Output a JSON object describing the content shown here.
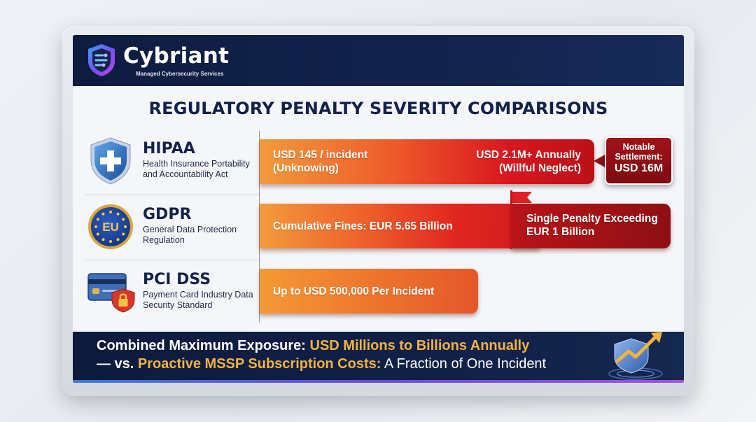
{
  "header": {
    "brand": "Cybriant",
    "tagline": "Managed Cybersecurity Services"
  },
  "title": "REGULATORY PENALTY SEVERITY COMPARISONS",
  "regulations": [
    {
      "name": "HIPAA",
      "description": "Health Insurance Portability and Accountability Act",
      "icon": "medical-shield-icon",
      "bar_min_line1": "USD 145 / incident",
      "bar_min_line2": "(Unknowing)",
      "bar_max_line1": "USD 2.1M+ Annually",
      "bar_max_line2": "(Willful Neglect)",
      "callout": {
        "line1": "Notable",
        "line2": "Settlement:",
        "line3": "USD 16M"
      }
    },
    {
      "name": "GDPR",
      "description": "General Data Protection Regulation",
      "icon": "eu-badge-icon",
      "icon_text": "EU",
      "bar_label": "Cumulative Fines: EUR 5.65 Billion",
      "extension_line1": "Single Penalty Exceeding",
      "extension_line2": "EUR 1 Billion",
      "marker_icon": "red-flag-icon"
    },
    {
      "name": "PCI DSS",
      "description": "Payment Card Industry Data Security Standard",
      "icon": "credit-card-lock-icon",
      "bar_label": "Up to USD 500,000 Per Incident"
    }
  ],
  "footer": {
    "line1_prefix": "Combined Maximum Exposure: ",
    "line1_highlight": "USD Millions to Billions Annually",
    "line2_prefix": "— vs. ",
    "line2_highlight": "Proactive MSSP Subscription Costs:",
    "line2_suffix": " A Fraction of One Incident",
    "emblem": "shield-growth-arrow-icon"
  },
  "colors": {
    "navy": "#13224a",
    "orange": "#f0883a",
    "red": "#d81e22",
    "dark_red": "#8e0f14",
    "gold": "#f3b341"
  }
}
